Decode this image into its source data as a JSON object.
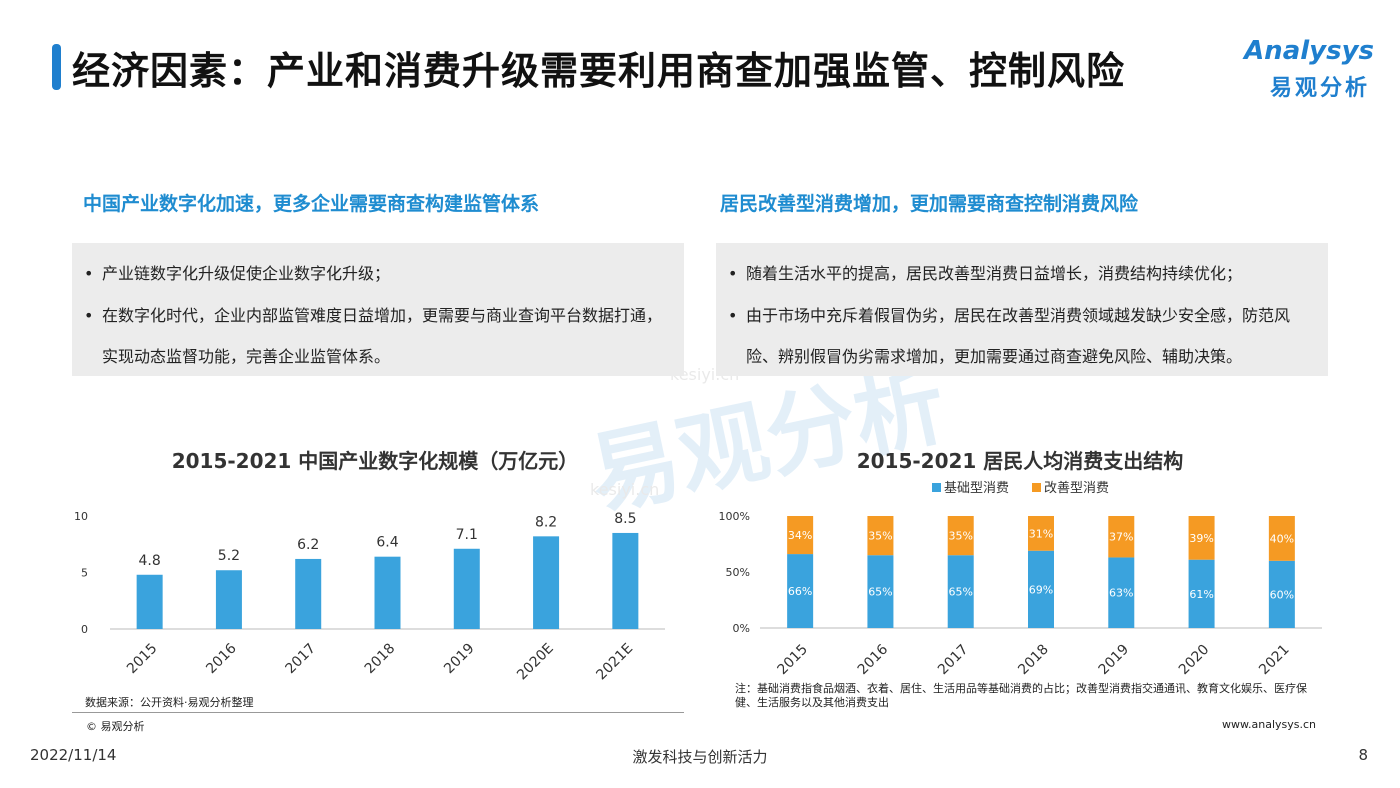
{
  "header": {
    "title": "经济因素：产业和消费升级需要利用商查加强监管、控制风险",
    "logo_en": "Analysys",
    "logo_cn": "易观分析",
    "accent": "#1f7fce"
  },
  "left": {
    "heading": "中国产业数字化加速，更多企业需要商查构建监管体系",
    "bullets": [
      "产业链数字化升级促使企业数字化升级；",
      "在数字化时代，企业内部监管难度日益增加，更需要与商业查询平台数据打通，实现动态监督功能，完善企业监管体系。"
    ]
  },
  "right": {
    "heading": "居民改善型消费增加，更加需要商查控制消费风险",
    "bullets": [
      "随着生活水平的提高，居民改善型消费日益增长，消费结构持续优化；",
      "由于市场中充斥着假冒伪劣，居民在改善型消费领域越发缺少安全感，防范风险、辨别假冒伪劣需求增加，更加需要通过商查避免风险、辅助决策。"
    ]
  },
  "bullet_symbol": "•",
  "chart_data": [
    {
      "type": "bar",
      "title": "2015-2021 中国产业数字化规模（万亿元）",
      "categories": [
        "2015",
        "2016",
        "2017",
        "2018",
        "2019",
        "2020E",
        "2021E"
      ],
      "values": [
        4.8,
        5.2,
        6.2,
        6.4,
        7.1,
        8.2,
        8.5
      ],
      "ylim": [
        0,
        10
      ],
      "yticks": [
        0,
        5,
        10
      ],
      "color": "#3aa3dd",
      "grid": false
    },
    {
      "type": "bar",
      "stacked": true,
      "title": "2015-2021 居民人均消费支出结构",
      "categories": [
        "2015",
        "2016",
        "2017",
        "2018",
        "2019",
        "2020",
        "2021"
      ],
      "series": [
        {
          "name": "基础型消费",
          "values": [
            66,
            65,
            65,
            69,
            63,
            61,
            60
          ],
          "color": "#3aa3dd"
        },
        {
          "name": "改善型消费",
          "values": [
            34,
            35,
            35,
            31,
            37,
            39,
            40
          ],
          "color": "#f59a23"
        }
      ],
      "ylim": [
        0,
        100
      ],
      "yticks": [
        "0%",
        "50%",
        "100%"
      ],
      "legend": "top-center",
      "grid": false
    }
  ],
  "notes": {
    "source": "数据来源：公开资料·易观分析整理",
    "copyright": "© 易观分析",
    "footnote": "注：基础消费指食品烟酒、衣着、居住、生活用品等基础消费的占比；改善型消费指交通通讯、教育文化娱乐、医疗保健、生活服务以及其他消费支出",
    "website": "www.analysys.cn"
  },
  "footer": {
    "date": "2022/11/14",
    "slogan": "激发科技与创新活力",
    "page": "8"
  },
  "watermark": {
    "text_cn": "易观分析",
    "text_site": "kesiyi.cn"
  }
}
